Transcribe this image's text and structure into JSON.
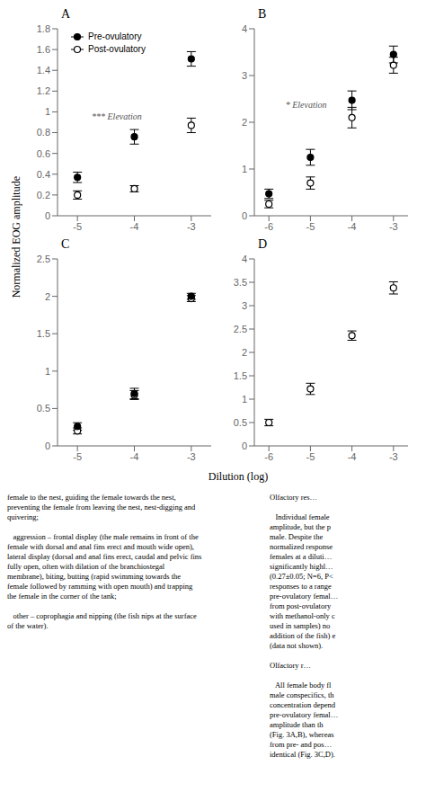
{
  "chart_data": [
    {
      "type": "scatter",
      "title": "A",
      "x": [
        -5,
        -4,
        -3
      ],
      "xlim": [
        -5.35,
        -2.65
      ],
      "xticks": [
        -5,
        -4,
        -3
      ],
      "ylim": [
        0,
        1.8
      ],
      "yticks": [
        0,
        0.2,
        0.4,
        0.6,
        0.8,
        1,
        1.2,
        1.4,
        1.6,
        1.8
      ],
      "grid": false,
      "legend": "upper left",
      "series": [
        {
          "name": "Pre-ovulatory",
          "color": "#000000",
          "marker": "filled",
          "values": [
            0.37,
            0.76,
            1.51
          ],
          "errors": [
            0.05,
            0.07,
            0.07
          ]
        },
        {
          "name": "Post-ovulatory",
          "color": "#000000",
          "marker": "open",
          "values": [
            0.2,
            0.26,
            0.87
          ],
          "errors": [
            0.04,
            0.03,
            0.07
          ]
        }
      ],
      "annotations": [
        {
          "text": "*** Elevation",
          "x": -4.75,
          "y": 0.93
        }
      ]
    },
    {
      "type": "scatter",
      "title": "B",
      "x": [
        -6,
        -5,
        -4,
        -3
      ],
      "xlim": [
        -6.35,
        -2.65
      ],
      "xticks": [
        -6,
        -5,
        -4,
        -3
      ],
      "ylim": [
        0,
        4
      ],
      "yticks": [
        0,
        1,
        2,
        3,
        4
      ],
      "grid": false,
      "series": [
        {
          "name": "Pre-ovulatory",
          "color": "#000000",
          "marker": "filled",
          "values": [
            0.47,
            1.25,
            2.47,
            3.45
          ],
          "errors": [
            0.1,
            0.17,
            0.2,
            0.18
          ]
        },
        {
          "name": "Post-ovulatory",
          "color": "#000000",
          "marker": "open",
          "values": [
            0.25,
            0.7,
            2.1,
            3.22
          ],
          "errors": [
            0.08,
            0.13,
            0.22,
            0.17
          ]
        }
      ],
      "annotations": [
        {
          "text": "* Elevation",
          "x": -5.6,
          "y": 2.3
        }
      ]
    },
    {
      "type": "scatter",
      "title": "C",
      "x": [
        -5,
        -4,
        -3
      ],
      "xlim": [
        -5.35,
        -2.65
      ],
      "xticks": [
        -5,
        -4,
        -3
      ],
      "ylim": [
        0,
        2.5
      ],
      "yticks": [
        0,
        0.5,
        1,
        1.5,
        2,
        2.5
      ],
      "grid": false,
      "series": [
        {
          "name": "Pre-ovulatory",
          "color": "#000000",
          "marker": "filled",
          "values": [
            0.26,
            0.7,
            2.0
          ],
          "errors": [
            0.05,
            0.07,
            0.04
          ]
        },
        {
          "name": "Post-ovulatory",
          "color": "#000000",
          "marker": "open",
          "values": [
            0.2,
            0.68,
            1.97
          ],
          "errors": [
            0.04,
            0.06,
            0.04
          ]
        }
      ]
    },
    {
      "type": "scatter",
      "title": "D",
      "x": [
        -6,
        -5,
        -4,
        -3
      ],
      "xlim": [
        -6.35,
        -2.65
      ],
      "xticks": [
        -6,
        -5,
        -4,
        -3
      ],
      "ylim": [
        0,
        4
      ],
      "yticks": [
        0,
        0.5,
        1,
        1.5,
        2,
        2.5,
        3,
        3.5,
        4
      ],
      "grid": false,
      "series": [
        {
          "name": "Post-ovulatory",
          "color": "#000000",
          "marker": "open",
          "values": [
            0.5,
            1.22,
            2.36,
            3.38
          ],
          "errors": [
            0.07,
            0.12,
            0.1,
            0.13
          ]
        }
      ]
    }
  ],
  "xlabel": "Dilution (log)",
  "ylabel": "Normalized EOG amplitude",
  "annotations": [
    "female to the nest, guiding the female towards the nest,\npreventing the female from leaving the nest, nest-digging and\nquivering;\n\n   aggression – frontal display (the male remains in front of the\nfemale with dorsal and anal fins erect and mouth wide open),\nlateral display (dorsal and anal fins erect, caudal and pelvic fins\nfully open, often with dilation of the branchiostegal\nmembrane), biting, butting (rapid swimming towards the\nfemale followed by ramming with open mouth) and trapping\nthe female in the corner of the tank;\n\n   other – coprophagia and nipping (the fish nips at the surface\nof the water).",
    "Olfactory res…\n\n   Individual female\namplitude, but the p\nmale. Despite the\nnormalized response\nfemales at a diluti…\nsignificantly highl…\n(0.27±0.05; N=6, P<\nresponses to a range\npre-ovulatory femal…\nfrom post-ovulatory\nwith methanol-only c\nused in samples) no\naddition of the fish) e\n(data not shown).\n\nOlfactory r…\n\n   All female body fl\nmale conspecifics, th\nconcentration depend\npre-ovulatory femal…\namplitude than th\n(Fig. 3A,B), whereas\nfrom pre- and pos…\nidentical (Fig. 3C,D)."
  ]
}
